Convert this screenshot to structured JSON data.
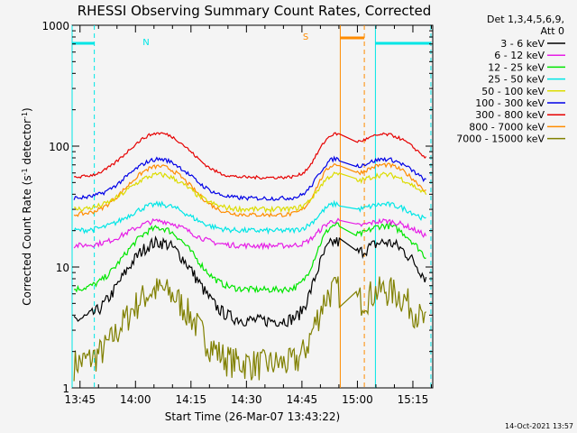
{
  "chart_data": {
    "type": "line",
    "title": "RHESSI Observing Summary Count Rates, Corrected",
    "xlabel": "Start Time (26-Mar-07 13:43:22)",
    "ylabel_main": "Corrected Count Rate (s",
    "ylabel_sup1": "-1",
    "ylabel_mid": " detector",
    "ylabel_sup2": "-1",
    "ylabel_end": ")",
    "ylim": [
      1,
      1000
    ],
    "yscale": "log",
    "xlim_minutes": [
      -0.5,
      97
    ],
    "x_tick_labels": [
      "13:45",
      "14:00",
      "14:15",
      "14:30",
      "14:45",
      "15:00",
      "15:15"
    ],
    "y_tick_labels": [
      "1",
      "10",
      "100",
      "1000"
    ],
    "legend_header": [
      "Det 1,3,4,5,6,9,",
      "Att 0"
    ],
    "timestamp": "14-Oct-2021 13:57",
    "night_label": "N",
    "saa_label": "S",
    "series": [
      {
        "name": "3 - 6 keV",
        "color": "#000000",
        "base": 3.6,
        "peak1": 16,
        "peak2": 16,
        "noise": 0.12
      },
      {
        "name": "6 - 12 keV",
        "color": "#e61ee6",
        "base": 15,
        "peak1": 24,
        "peak2": 24,
        "noise": 0.05
      },
      {
        "name": "12 - 25 keV",
        "color": "#00e600",
        "base": 6.5,
        "peak1": 21,
        "peak2": 22,
        "noise": 0.06
      },
      {
        "name": "25 - 50 keV",
        "color": "#00e6e6",
        "base": 20,
        "peak1": 33,
        "peak2": 33,
        "noise": 0.05
      },
      {
        "name": "50 - 100 keV",
        "color": "#dcdc00",
        "base": 30,
        "peak1": 58,
        "peak2": 58,
        "noise": 0.05
      },
      {
        "name": "100 - 300 keV",
        "color": "#0000e6",
        "base": 37,
        "peak1": 78,
        "peak2": 78,
        "noise": 0.04
      },
      {
        "name": "300 - 800 keV",
        "color": "#e60000",
        "base": 55,
        "peak1": 128,
        "peak2": 125,
        "noise": 0.03
      },
      {
        "name": "800 - 7000 keV",
        "color": "#ff8c00",
        "base": 27,
        "peak1": 68,
        "peak2": 70,
        "noise": 0.04
      },
      {
        "name": "7000 - 15000 keV",
        "color": "#808000",
        "base": 1.6,
        "peak1": 6.5,
        "peak2": 6.5,
        "noise": 0.3
      }
    ],
    "night_intervals_minutes": [
      [
        -0.5,
        5.5
      ],
      [
        81.5,
        96.5
      ]
    ],
    "saa_interval_minutes": [
      72,
      78.5
    ],
    "grid": false,
    "legend_placement": "right"
  }
}
